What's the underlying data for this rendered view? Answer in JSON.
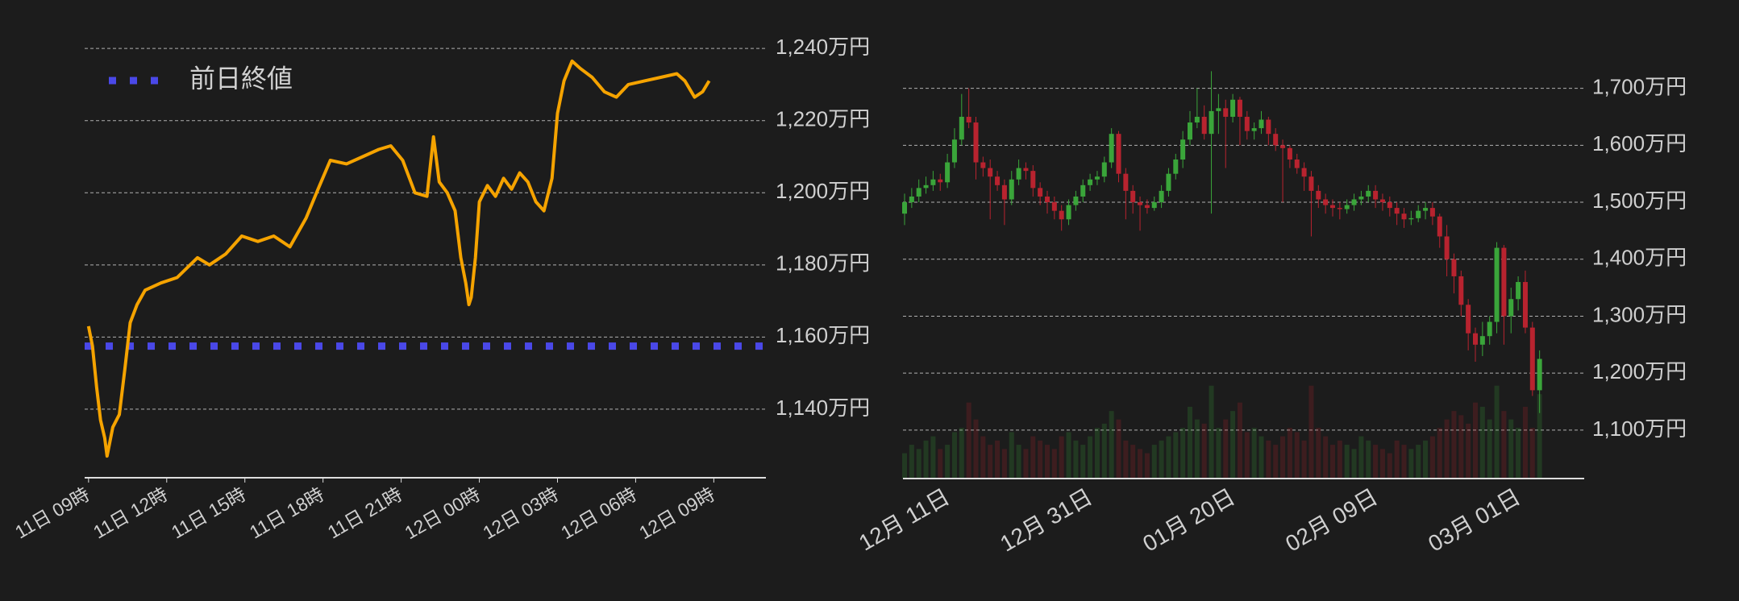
{
  "chart_data": [
    {
      "type": "line",
      "x": [
        0,
        0.15,
        0.31,
        0.46,
        0.62,
        0.71,
        0.93,
        1.18,
        1.39,
        1.6,
        1.86,
        2.17,
        2.78,
        3.4,
        4.18,
        4.64,
        5.26,
        5.88,
        6.5,
        7.11,
        7.73,
        8.35,
        8.81,
        9.28,
        9.9,
        10.52,
        11.14,
        11.6,
        12.06,
        12.53,
        12.99,
        13.24,
        13.46,
        13.77,
        14.07,
        14.29,
        14.48,
        14.6,
        14.69,
        14.85,
        15,
        15.31,
        15.62,
        15.93,
        16.24,
        16.55,
        16.86,
        17.17,
        17.48,
        17.79,
        18.0,
        18.25,
        18.56,
        18.87,
        19.33,
        19.8,
        20.26,
        20.72,
        21.34,
        21.96,
        22.58,
        22.89,
        23.26,
        23.57,
        23.82
      ],
      "values": [
        1163,
        1157.5,
        1146,
        1137,
        1132,
        1127,
        1135,
        1138.5,
        1151,
        1164,
        1169,
        1173,
        1175,
        1176.5,
        1182,
        1180,
        1183,
        1188,
        1186.5,
        1188,
        1185,
        1193,
        1201,
        1209,
        1208,
        1210,
        1212,
        1213,
        1209,
        1200,
        1199,
        1215.5,
        1203,
        1200,
        1195,
        1182,
        1175,
        1169,
        1171,
        1182,
        1197.5,
        1202,
        1199,
        1204,
        1201,
        1205.5,
        1203,
        1197.5,
        1195,
        1204,
        1222,
        1231,
        1236.5,
        1234.5,
        1232,
        1228,
        1226.5,
        1230,
        1231,
        1232,
        1233,
        1231,
        1226.5,
        1228,
        1231
      ],
      "color": "#f5a300",
      "xlim": [
        -0.15,
        26
      ],
      "ylim": [
        1121,
        1244.5
      ],
      "xticks": [
        {
          "value": 0,
          "label": "11日 09時"
        },
        {
          "value": 3,
          "label": "11日 12時"
        },
        {
          "value": 6,
          "label": "11日 15時"
        },
        {
          "value": 9,
          "label": "11日 18時"
        },
        {
          "value": 12,
          "label": "11日 21時"
        },
        {
          "value": 15,
          "label": "12日 00時"
        },
        {
          "value": 18,
          "label": "12日 03時"
        },
        {
          "value": 21,
          "label": "12日 06時"
        },
        {
          "value": 24,
          "label": "12日 09時"
        }
      ],
      "yticks": [
        {
          "value": 1140,
          "label": "1,140万円"
        },
        {
          "value": 1160,
          "label": "1,160万円"
        },
        {
          "value": 1180,
          "label": "1,180万円"
        },
        {
          "value": 1200,
          "label": "1,200万円"
        },
        {
          "value": 1220,
          "label": "1,220万円"
        },
        {
          "value": 1240,
          "label": "1,240万円"
        }
      ],
      "grid": true,
      "reference_line": {
        "name": "前日終値",
        "value": 1157.5,
        "color": "#4a48e8"
      },
      "legend": "upper left"
    },
    {
      "type": "candlestick",
      "categories": [
        null,
        null,
        null,
        null,
        null,
        "12月 11日",
        null,
        null,
        null,
        null,
        null,
        null,
        null,
        null,
        null,
        null,
        null,
        null,
        null,
        null,
        null,
        null,
        null,
        null,
        null,
        "12月 31日",
        null,
        null,
        null,
        null,
        null,
        null,
        null,
        null,
        null,
        null,
        null,
        null,
        null,
        null,
        null,
        null,
        null,
        null,
        null,
        "01月 20日",
        null,
        null,
        null,
        null,
        null,
        null,
        null,
        null,
        null,
        null,
        null,
        null,
        null,
        null,
        null,
        null,
        null,
        null,
        null,
        "02月 09日",
        null,
        null,
        null,
        null,
        null,
        null,
        null,
        null,
        null,
        null,
        null,
        null,
        null,
        null,
        null,
        null,
        null,
        null,
        null,
        "03月 01日",
        null,
        null,
        null,
        null
      ],
      "open": [
        1480,
        1500,
        1510,
        1525,
        1530,
        1540,
        1535,
        1570,
        1610,
        1650,
        1640,
        1570,
        1560,
        1545,
        1530,
        1505,
        1540,
        1560,
        1555,
        1525,
        1510,
        1500,
        1485,
        1470,
        1495,
        1510,
        1530,
        1540,
        1545,
        1570,
        1620,
        1550,
        1520,
        1500,
        1495,
        1490,
        1500,
        1520,
        1550,
        1575,
        1610,
        1640,
        1650,
        1620,
        1660,
        1665,
        1650,
        1680,
        1650,
        1625,
        1630,
        1645,
        1620,
        1600,
        1595,
        1575,
        1560,
        1545,
        1520,
        1505,
        1495,
        1490,
        1488,
        1495,
        1505,
        1510,
        1520,
        1505,
        1500,
        1490,
        1480,
        1470,
        1472,
        1485,
        1490,
        1475,
        1440,
        1400,
        1370,
        1320,
        1270,
        1250,
        1265,
        1290,
        1420,
        1300,
        1330,
        1360,
        1280,
        1170
      ],
      "high": [
        1515,
        1525,
        1540,
        1545,
        1555,
        1550,
        1585,
        1630,
        1690,
        1700,
        1650,
        1580,
        1575,
        1555,
        1540,
        1555,
        1575,
        1570,
        1565,
        1535,
        1520,
        1510,
        1495,
        1505,
        1520,
        1540,
        1550,
        1555,
        1580,
        1630,
        1625,
        1560,
        1530,
        1510,
        1505,
        1510,
        1530,
        1560,
        1585,
        1625,
        1660,
        1700,
        1670,
        1730,
        1690,
        1680,
        1690,
        1685,
        1660,
        1640,
        1660,
        1650,
        1630,
        1610,
        1600,
        1585,
        1570,
        1555,
        1530,
        1515,
        1505,
        1500,
        1505,
        1515,
        1520,
        1530,
        1530,
        1515,
        1510,
        1500,
        1490,
        1485,
        1495,
        1500,
        1500,
        1480,
        1460,
        1410,
        1380,
        1330,
        1280,
        1290,
        1300,
        1430,
        1425,
        1350,
        1370,
        1380,
        1290,
        1240
      ],
      "low": [
        1460,
        1490,
        1500,
        1515,
        1520,
        1520,
        1525,
        1560,
        1600,
        1630,
        1540,
        1545,
        1470,
        1520,
        1460,
        1495,
        1530,
        1540,
        1510,
        1495,
        1480,
        1470,
        1450,
        1460,
        1485,
        1500,
        1520,
        1530,
        1535,
        1560,
        1535,
        1470,
        1480,
        1450,
        1480,
        1485,
        1490,
        1510,
        1540,
        1560,
        1600,
        1630,
        1610,
        1480,
        1620,
        1560,
        1640,
        1600,
        1610,
        1610,
        1620,
        1600,
        1590,
        1500,
        1560,
        1550,
        1520,
        1440,
        1490,
        1480,
        1475,
        1470,
        1480,
        1485,
        1495,
        1500,
        1490,
        1485,
        1475,
        1460,
        1455,
        1460,
        1465,
        1470,
        1460,
        1420,
        1370,
        1340,
        1300,
        1240,
        1220,
        1230,
        1250,
        1270,
        1250,
        1270,
        1310,
        1270,
        1160,
        1130
      ],
      "close": [
        1500,
        1510,
        1525,
        1530,
        1540,
        1535,
        1570,
        1610,
        1650,
        1640,
        1570,
        1560,
        1545,
        1530,
        1505,
        1540,
        1560,
        1555,
        1525,
        1510,
        1500,
        1485,
        1470,
        1495,
        1510,
        1530,
        1540,
        1545,
        1570,
        1620,
        1550,
        1520,
        1500,
        1495,
        1490,
        1500,
        1520,
        1550,
        1575,
        1610,
        1640,
        1650,
        1620,
        1660,
        1665,
        1650,
        1680,
        1650,
        1625,
        1630,
        1645,
        1620,
        1600,
        1595,
        1575,
        1560,
        1545,
        1520,
        1505,
        1495,
        1490,
        1488,
        1495,
        1505,
        1510,
        1520,
        1505,
        1500,
        1490,
        1480,
        1470,
        1472,
        1485,
        1490,
        1475,
        1440,
        1400,
        1370,
        1320,
        1270,
        1250,
        1265,
        1290,
        1420,
        1300,
        1330,
        1360,
        1280,
        1170,
        1225
      ],
      "volume": [
        30,
        40,
        35,
        45,
        50,
        35,
        40,
        55,
        60,
        90,
        70,
        50,
        40,
        45,
        35,
        55,
        40,
        35,
        50,
        45,
        40,
        35,
        50,
        55,
        45,
        40,
        50,
        60,
        65,
        80,
        70,
        45,
        40,
        35,
        30,
        40,
        45,
        50,
        55,
        60,
        85,
        70,
        65,
        110,
        60,
        70,
        80,
        90,
        55,
        60,
        50,
        45,
        40,
        50,
        60,
        55,
        45,
        110,
        60,
        50,
        40,
        45,
        40,
        35,
        50,
        45,
        40,
        35,
        30,
        45,
        40,
        35,
        40,
        45,
        50,
        60,
        70,
        80,
        75,
        65,
        90,
        85,
        70,
        110,
        80,
        70,
        60,
        85,
        60,
        100
      ],
      "ylim": [
        1015,
        1756
      ],
      "yticks": [
        {
          "value": 1100,
          "label": "1,100万円"
        },
        {
          "value": 1200,
          "label": "1,200万円"
        },
        {
          "value": 1300,
          "label": "1,300万円"
        },
        {
          "value": 1400,
          "label": "1,400万円"
        },
        {
          "value": 1500,
          "label": "1,500万円"
        },
        {
          "value": 1600,
          "label": "1,600万円"
        },
        {
          "value": 1700,
          "label": "1,700万円"
        }
      ],
      "volume_ylim": [
        0,
        500
      ],
      "grid": true,
      "up_color": "#3aa53a",
      "down_color": "#b8232f"
    }
  ]
}
